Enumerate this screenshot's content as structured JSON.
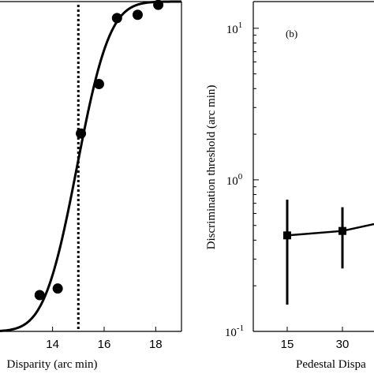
{
  "chart_data": [
    {
      "type": "scatter",
      "panel": "",
      "xlabel": "Disparity (arc min)",
      "ylabel": "",
      "xlim": [
        11.9,
        19.0
      ],
      "ylim": [
        0.0,
        1.0
      ],
      "x_ticks": [
        "14",
        "16",
        "18"
      ],
      "reference_line_x": 15.0,
      "points": [
        {
          "x": 13.5,
          "y": 0.11
        },
        {
          "x": 14.2,
          "y": 0.13
        },
        {
          "x": 15.1,
          "y": 0.6
        },
        {
          "x": 15.8,
          "y": 0.75
        },
        {
          "x": 16.5,
          "y": 0.95
        },
        {
          "x": 17.3,
          "y": 0.96
        },
        {
          "x": 18.1,
          "y": 0.99
        }
      ],
      "fit": {
        "type": "cumulative-gaussian",
        "mu": 14.95,
        "sigma": 1.0
      }
    },
    {
      "type": "line",
      "panel": "(b)",
      "xlabel": "Pedestal Dispa",
      "ylabel": "Discrimination threshold (arc min)",
      "y_scale": "log",
      "ylim": [
        0.1,
        15
      ],
      "y_ticks": [
        {
          "base": "10",
          "exp": "1",
          "value": 10
        },
        {
          "base": "10",
          "exp": "0",
          "value": 1
        },
        {
          "base": "10",
          "exp": "-1",
          "value": 0.1
        }
      ],
      "categories": [
        "15",
        "30"
      ],
      "series": [
        {
          "values": [
            0.43,
            0.46
          ],
          "err_low": [
            0.15,
            0.26
          ],
          "err_high": [
            0.74,
            0.66
          ]
        }
      ]
    }
  ]
}
